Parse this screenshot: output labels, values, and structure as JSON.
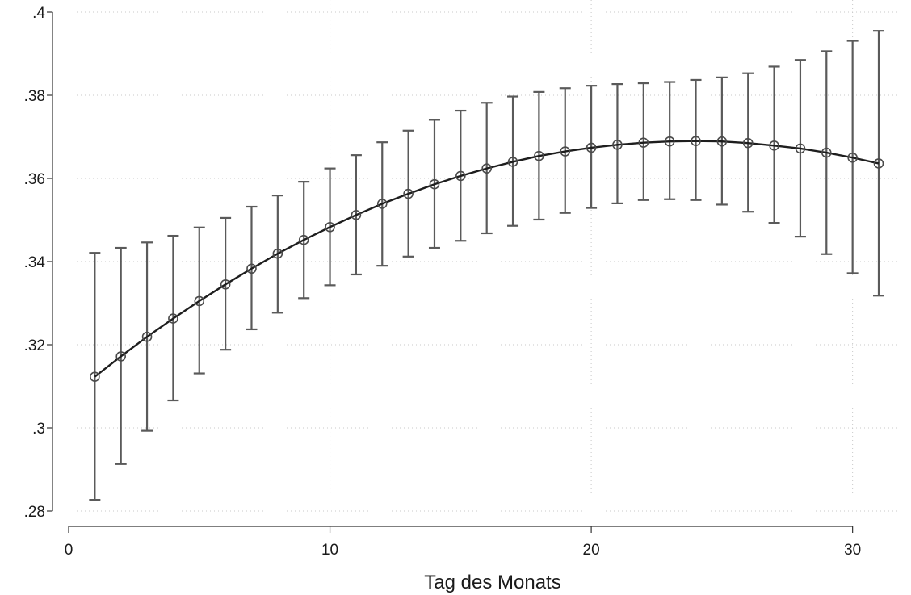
{
  "chart_data": {
    "type": "line",
    "title": "",
    "xlabel": "Tag des Monats",
    "ylabel": "",
    "xlim": [
      0,
      31
    ],
    "ylim": [
      0.28,
      0.4
    ],
    "grid": true,
    "x_ticks": [
      {
        "value": 0,
        "label": "0"
      },
      {
        "value": 10,
        "label": "10"
      },
      {
        "value": 20,
        "label": "20"
      },
      {
        "value": 30,
        "label": "30"
      }
    ],
    "y_ticks": [
      {
        "value": 0.28,
        "label": ".28"
      },
      {
        "value": 0.3,
        "label": ".3"
      },
      {
        "value": 0.32,
        "label": ".32"
      },
      {
        "value": 0.34,
        "label": ".34"
      },
      {
        "value": 0.36,
        "label": ".36"
      },
      {
        "value": 0.38,
        "label": ".38"
      },
      {
        "value": 0.4,
        "label": ".4"
      }
    ],
    "series": [
      {
        "x": [
          1,
          2,
          3,
          4,
          5,
          6,
          7,
          8,
          9,
          10,
          11,
          12,
          13,
          14,
          15,
          16,
          17,
          18,
          19,
          20,
          21,
          22,
          23,
          24,
          25,
          26,
          27,
          28,
          29,
          30,
          31
        ],
        "y": [
          0.3123,
          0.3172,
          0.3219,
          0.3263,
          0.3305,
          0.3345,
          0.3383,
          0.3419,
          0.3452,
          0.3483,
          0.3512,
          0.3539,
          0.3563,
          0.3586,
          0.3606,
          0.3624,
          0.364,
          0.3654,
          0.3665,
          0.3674,
          0.3681,
          0.3686,
          0.3689,
          0.369,
          0.3689,
          0.3685,
          0.3679,
          0.3672,
          0.3662,
          0.365,
          0.3636
        ],
        "ci_lower": [
          0.2827,
          0.2913,
          0.2993,
          0.3066,
          0.3131,
          0.3188,
          0.3237,
          0.3277,
          0.3312,
          0.3343,
          0.3369,
          0.339,
          0.3412,
          0.3433,
          0.345,
          0.3468,
          0.3486,
          0.3501,
          0.3517,
          0.3529,
          0.354,
          0.3548,
          0.355,
          0.3548,
          0.3537,
          0.352,
          0.3493,
          0.346,
          0.3418,
          0.3372,
          0.3318
        ],
        "ci_upper": [
          0.3421,
          0.3433,
          0.3446,
          0.3462,
          0.3482,
          0.3505,
          0.3532,
          0.3559,
          0.3592,
          0.3624,
          0.3656,
          0.3687,
          0.3715,
          0.3741,
          0.3763,
          0.3782,
          0.3797,
          0.3808,
          0.3817,
          0.3823,
          0.3827,
          0.3829,
          0.3832,
          0.3837,
          0.3843,
          0.3853,
          0.3869,
          0.3885,
          0.3906,
          0.3931,
          0.3955
        ]
      }
    ]
  }
}
